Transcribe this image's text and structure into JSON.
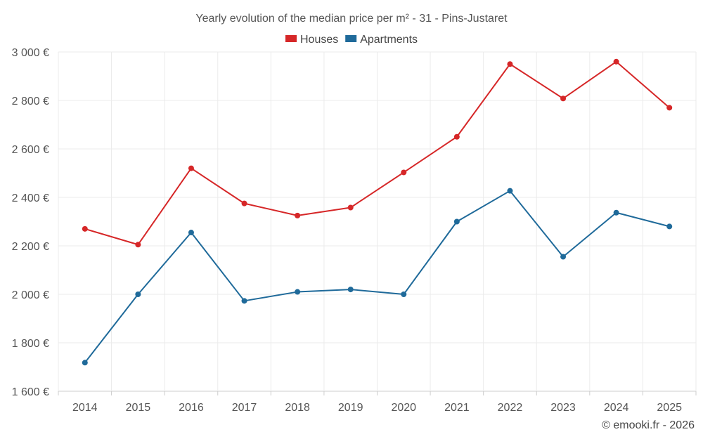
{
  "chart_data": {
    "type": "line",
    "title": "Yearly evolution of the median price per m² - 31 - Pins-Justaret",
    "categories": [
      "2014",
      "2015",
      "2016",
      "2017",
      "2018",
      "2019",
      "2020",
      "2021",
      "2022",
      "2023",
      "2024",
      "2025"
    ],
    "series": [
      {
        "name": "Houses",
        "color": "#d62728",
        "values": [
          2270,
          2205,
          2520,
          2375,
          2325,
          2358,
          2503,
          2650,
          2950,
          2808,
          2960,
          2770
        ]
      },
      {
        "name": "Apartments",
        "color": "#1f6a9a",
        "values": [
          1718,
          2000,
          2255,
          1973,
          2010,
          2020,
          2000,
          2300,
          2427,
          2155,
          2337,
          2280
        ]
      }
    ],
    "ylim": [
      1600,
      3000
    ],
    "yticks": [
      1600,
      1800,
      2000,
      2200,
      2400,
      2600,
      2800,
      3000
    ],
    "ytick_labels": [
      "1 600 €",
      "1 800 €",
      "2 000 €",
      "2 200 €",
      "2 400 €",
      "2 600 €",
      "2 800 €",
      "3 000 €"
    ],
    "xlabel": "",
    "ylabel": "",
    "grid": true,
    "legend_position": "top-center"
  },
  "credit": "© emooki.fr - 2026"
}
